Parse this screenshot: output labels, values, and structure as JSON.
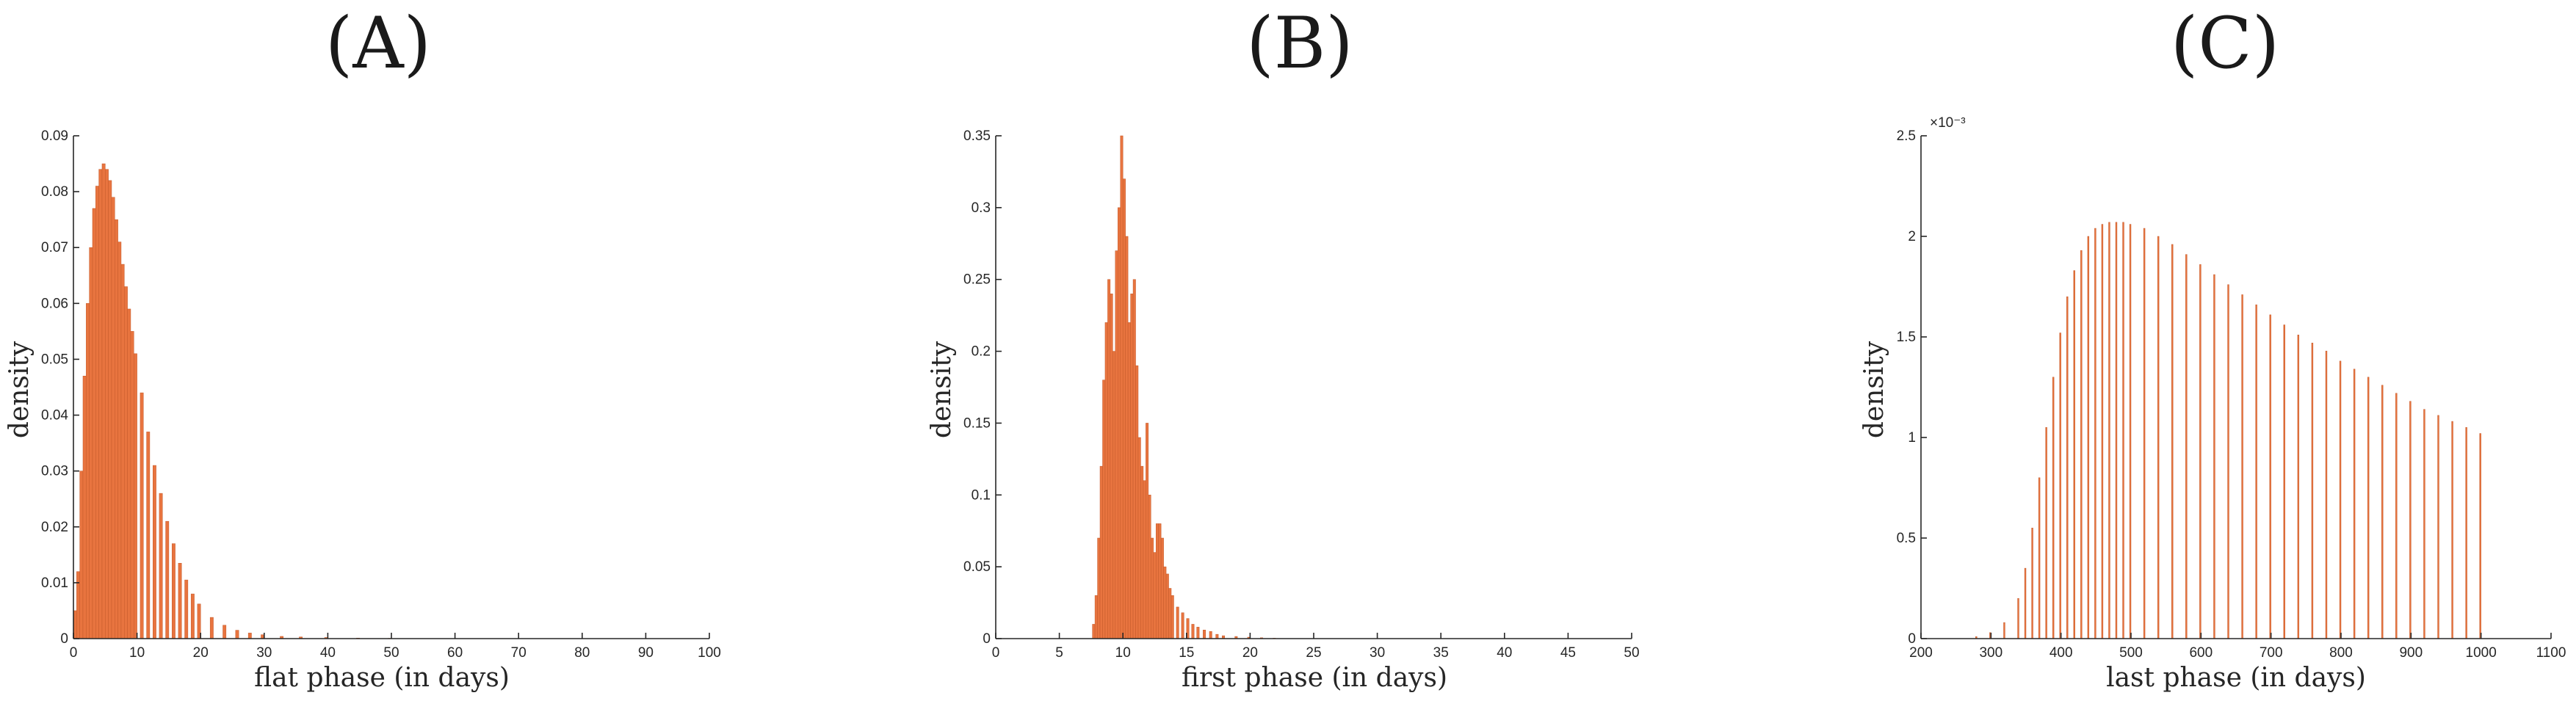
{
  "colors": {
    "bar_fill": "#e8743f",
    "bar_edge": "#c45a2a",
    "axis": "#262626"
  },
  "chart_data": [
    {
      "type": "bar",
      "title": "(A)",
      "xlabel": "flat phase (in days)",
      "ylabel": "density",
      "xlim": [
        0,
        100
      ],
      "ylim": [
        0,
        0.09
      ],
      "xticks": [
        0,
        10,
        20,
        30,
        40,
        50,
        60,
        70,
        80,
        90,
        100
      ],
      "xtick_labels": [
        "0",
        "10",
        "20",
        "30",
        "40",
        "50",
        "60",
        "70",
        "80",
        "90",
        "100"
      ],
      "yticks": [
        0,
        0.01,
        0.02,
        0.03,
        0.04,
        0.05,
        0.06,
        0.07,
        0.08,
        0.09
      ],
      "ytick_labels": [
        "0",
        "0.01",
        "0.02",
        "0.03",
        "0.04",
        "0.05",
        "0.06",
        "0.07",
        "0.08",
        "0.09"
      ],
      "grid": false,
      "bin_width": 0.5,
      "x": [
        0.5,
        1.0,
        1.5,
        2.0,
        2.5,
        3.0,
        3.5,
        4.0,
        4.5,
        5.0,
        5.5,
        6.0,
        6.5,
        7.0,
        7.5,
        8.0,
        8.5,
        9.0,
        9.5,
        10.0,
        11.0,
        12.0,
        13.0,
        14.0,
        15.0,
        16.0,
        17.0,
        18.0,
        19.0,
        20.0,
        22.0,
        24.0,
        26.0,
        28.0,
        30.0,
        33.0,
        36.0,
        40.0,
        45.0,
        50.0,
        60.0,
        70.0,
        80.0,
        90.0,
        100.0
      ],
      "values": [
        0.005,
        0.012,
        0.03,
        0.047,
        0.06,
        0.07,
        0.077,
        0.081,
        0.084,
        0.085,
        0.084,
        0.082,
        0.079,
        0.075,
        0.071,
        0.067,
        0.063,
        0.059,
        0.055,
        0.051,
        0.044,
        0.037,
        0.031,
        0.026,
        0.021,
        0.017,
        0.0135,
        0.0105,
        0.008,
        0.0062,
        0.0038,
        0.0024,
        0.0015,
        0.001,
        0.0007,
        0.0004,
        0.0003,
        0.0002,
        0.0001,
        6e-05,
        3e-05,
        2e-05,
        1e-05,
        1e-05,
        0.0
      ]
    },
    {
      "type": "bar",
      "title": "(B)",
      "xlabel": "first phase (in days)",
      "ylabel": "density",
      "xlim": [
        0,
        50
      ],
      "ylim": [
        0,
        0.35
      ],
      "xticks": [
        0,
        5,
        10,
        15,
        20,
        25,
        30,
        35,
        40,
        45,
        50
      ],
      "xtick_labels": [
        "0",
        "5",
        "10",
        "15",
        "20",
        "25",
        "30",
        "35",
        "40",
        "45",
        "50"
      ],
      "yticks": [
        0,
        0.05,
        0.1,
        0.15,
        0.2,
        0.25,
        0.3,
        0.35
      ],
      "ytick_labels": [
        "0",
        "0.05",
        "0.1",
        "0.15",
        "0.2",
        "0.25",
        "0.3",
        "0.35"
      ],
      "grid": false,
      "bin_width": 0.2,
      "x": [
        7.8,
        8.0,
        8.2,
        8.4,
        8.6,
        8.8,
        9.0,
        9.2,
        9.4,
        9.6,
        9.8,
        10.0,
        10.2,
        10.4,
        10.6,
        10.8,
        11.0,
        11.2,
        11.4,
        11.6,
        11.8,
        12.0,
        12.2,
        12.4,
        12.6,
        12.8,
        13.0,
        13.2,
        13.4,
        13.6,
        13.8,
        14.0,
        14.4,
        14.8,
        15.2,
        15.6,
        16.0,
        16.5,
        17.0,
        17.5,
        18.0,
        19.0,
        20.0,
        21.0,
        22.0
      ],
      "values": [
        0.01,
        0.03,
        0.07,
        0.12,
        0.18,
        0.22,
        0.25,
        0.24,
        0.2,
        0.27,
        0.3,
        0.35,
        0.32,
        0.28,
        0.22,
        0.24,
        0.25,
        0.19,
        0.14,
        0.12,
        0.11,
        0.15,
        0.1,
        0.07,
        0.06,
        0.08,
        0.08,
        0.07,
        0.05,
        0.045,
        0.035,
        0.03,
        0.022,
        0.018,
        0.014,
        0.01,
        0.008,
        0.006,
        0.005,
        0.003,
        0.002,
        0.0015,
        0.001,
        0.0006,
        0.0003
      ]
    },
    {
      "type": "bar",
      "title": "(C)",
      "xlabel": "last phase (in days)",
      "ylabel": "density",
      "y_exponent_label": "×10⁻³",
      "xlim": [
        200,
        1100
      ],
      "ylim": [
        0,
        2.5
      ],
      "y_scale_factor": 0.001,
      "xticks": [
        200,
        300,
        400,
        500,
        600,
        700,
        800,
        900,
        1000,
        1100
      ],
      "xtick_labels": [
        "200",
        "300",
        "400",
        "500",
        "600",
        "700",
        "800",
        "900",
        "1000",
        "1100"
      ],
      "yticks": [
        0,
        0.5,
        1,
        1.5,
        2,
        2.5
      ],
      "ytick_labels": [
        "0",
        "0.5",
        "1",
        "1.5",
        "2",
        "2.5"
      ],
      "grid": false,
      "bin_width": 2,
      "x": [
        280,
        300,
        320,
        340,
        350,
        360,
        370,
        380,
        390,
        400,
        410,
        420,
        430,
        440,
        450,
        460,
        470,
        480,
        490,
        500,
        520,
        540,
        560,
        580,
        600,
        620,
        640,
        660,
        680,
        700,
        720,
        740,
        760,
        780,
        800,
        820,
        840,
        860,
        880,
        900,
        920,
        940,
        960,
        980,
        1000
      ],
      "values": [
        0.01,
        0.03,
        0.08,
        0.2,
        0.35,
        0.55,
        0.8,
        1.05,
        1.3,
        1.52,
        1.7,
        1.83,
        1.93,
        2.0,
        2.04,
        2.06,
        2.07,
        2.07,
        2.07,
        2.06,
        2.04,
        2.0,
        1.96,
        1.91,
        1.86,
        1.81,
        1.76,
        1.71,
        1.66,
        1.61,
        1.56,
        1.51,
        1.47,
        1.43,
        1.38,
        1.34,
        1.3,
        1.26,
        1.22,
        1.18,
        1.14,
        1.11,
        1.08,
        1.05,
        1.02
      ]
    }
  ]
}
